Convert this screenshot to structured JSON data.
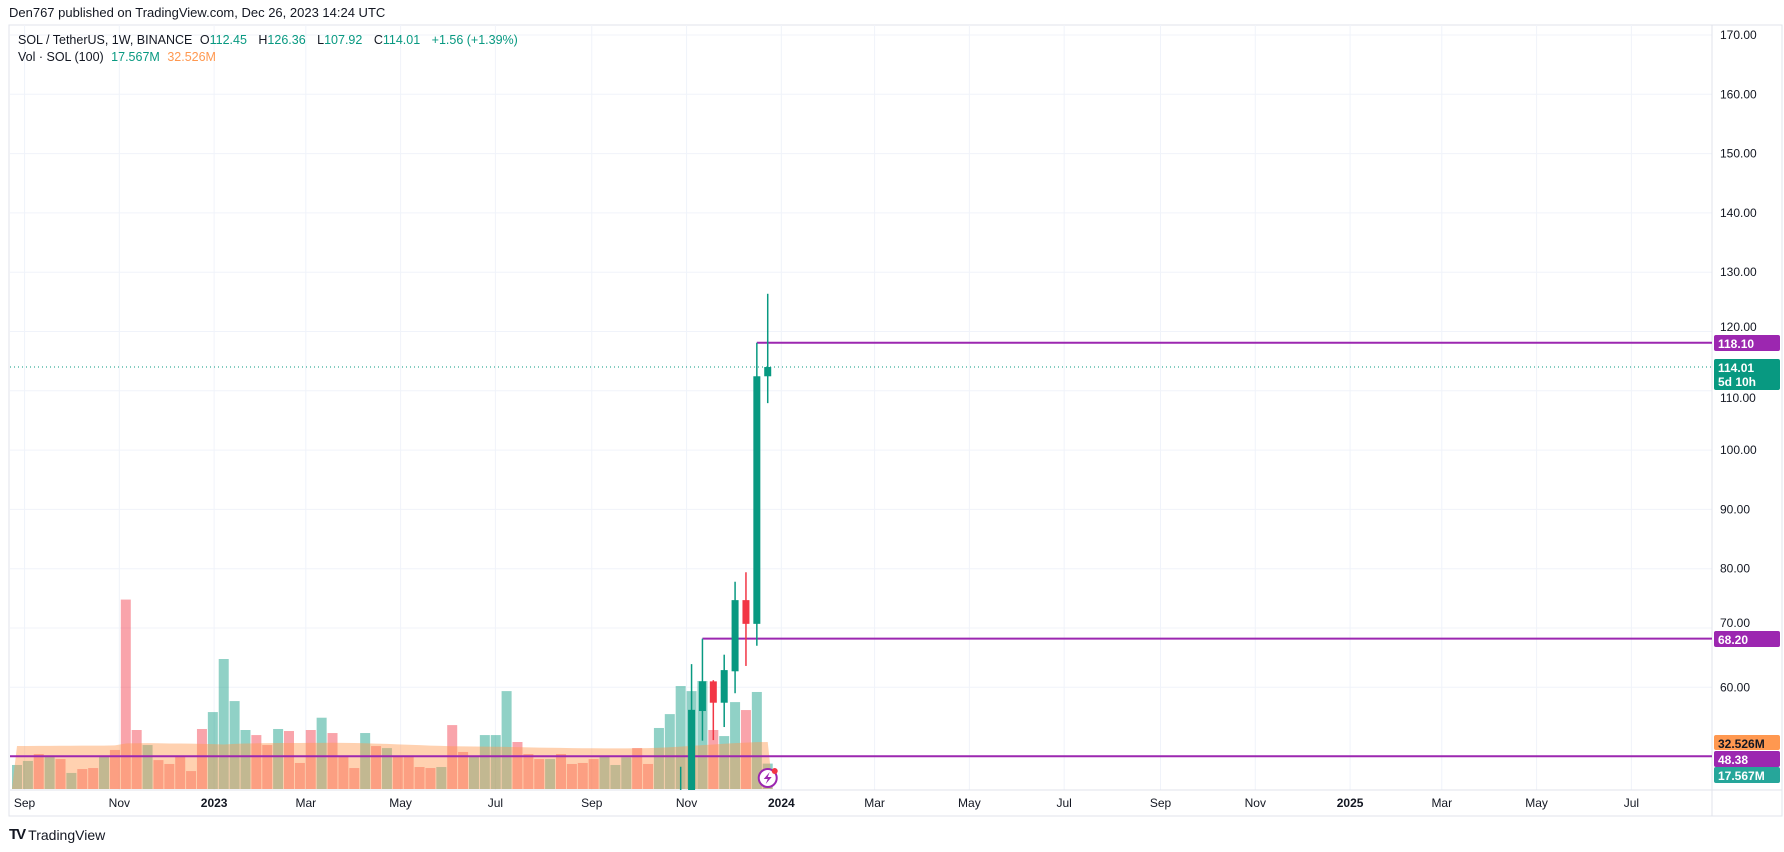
{
  "header": {
    "published": "Den767 published on TradingView.com, Dec 26, 2023 14:24 UTC"
  },
  "legend": {
    "symbol": "SOL / TetherUS, 1W, BINANCE",
    "o_label": "O",
    "o": "112.45",
    "h_label": "H",
    "h": "126.36",
    "l_label": "L",
    "l": "107.92",
    "c_label": "C",
    "c": "114.01",
    "change": "+1.56 (+1.39%)",
    "vol_label": "Vol · SOL (100)",
    "vol": "17.567M",
    "vol_ma": "32.526M"
  },
  "footer": {
    "logo_text": "TradingView"
  },
  "colors": {
    "up": "#089981",
    "down": "#f23645",
    "level": "#9c27b0",
    "vol_ma": "#ff9850",
    "grid": "#f0f3fa"
  },
  "chart_data": {
    "type": "candlestick",
    "interval": "1W",
    "week_start": "2022-08-22",
    "ylim": [
      42.7,
      171
    ],
    "y_ticks": [
      170,
      160,
      150,
      140,
      130,
      120,
      110,
      100,
      90,
      80,
      70,
      60
    ],
    "y_tick_labels": [
      "170.00",
      "160.00",
      "150.00",
      "140.00",
      "130.00",
      "120.00",
      "110.00",
      "100.00",
      "90.00",
      "80.00",
      "70.00",
      "60.00"
    ],
    "x_ticks": [
      {
        "date": "2022-09-01",
        "label": "Sep"
      },
      {
        "date": "2022-11-01",
        "label": "Nov"
      },
      {
        "date": "2023-01-01",
        "label": "2023",
        "bold": true
      },
      {
        "date": "2023-03-01",
        "label": "Mar"
      },
      {
        "date": "2023-05-01",
        "label": "May"
      },
      {
        "date": "2023-07-01",
        "label": "Jul"
      },
      {
        "date": "2023-09-01",
        "label": "Sep"
      },
      {
        "date": "2023-11-01",
        "label": "Nov"
      },
      {
        "date": "2024-01-01",
        "label": "2024",
        "bold": true
      },
      {
        "date": "2024-03-01",
        "label": "Mar"
      },
      {
        "date": "2024-05-01",
        "label": "May"
      },
      {
        "date": "2024-07-01",
        "label": "Jul"
      },
      {
        "date": "2024-09-01",
        "label": "Sep"
      },
      {
        "date": "2024-11-01",
        "label": "Nov"
      },
      {
        "date": "2025-01-01",
        "label": "2025",
        "bold": true
      },
      {
        "date": "2025-03-01",
        "label": "Mar"
      },
      {
        "date": "2025-05-01",
        "label": "May"
      },
      {
        "date": "2025-07-01",
        "label": "Jul"
      }
    ],
    "candles": [
      {
        "week": 61,
        "o": null,
        "h": 46.6,
        "l": null,
        "c": null,
        "dir": "up"
      },
      {
        "week": 62,
        "o": 39.0,
        "h": 63.9,
        "l": null,
        "c": 56.2,
        "dir": "up"
      },
      {
        "week": 63,
        "o": 56.0,
        "h": 68.2,
        "l": 51.0,
        "c": 61.0,
        "dir": "up"
      },
      {
        "week": 64,
        "o": 61.0,
        "h": 61.2,
        "l": 51.1,
        "c": 57.4,
        "dir": "down"
      },
      {
        "week": 65,
        "o": 57.4,
        "h": 65.5,
        "l": 53.3,
        "c": 62.9,
        "dir": "up"
      },
      {
        "week": 66,
        "o": 62.7,
        "h": 77.8,
        "l": 59.0,
        "c": 74.7,
        "dir": "up"
      },
      {
        "week": 67,
        "o": 74.7,
        "h": 79.4,
        "l": 63.6,
        "c": 70.7,
        "dir": "down"
      },
      {
        "week": 68,
        "o": 70.7,
        "h": 118.1,
        "l": 67.0,
        "c": 112.45,
        "dir": "up"
      },
      {
        "week": 69,
        "o": 112.45,
        "h": 126.36,
        "l": 107.92,
        "c": 114.01,
        "dir": "up"
      }
    ],
    "volume_unit": "M",
    "volume": [
      16.6,
      19.4,
      24.2,
      22.4,
      20.7,
      11.1,
      13.8,
      14.5,
      22.8,
      27,
      131,
      40.8,
      30.4,
      20,
      17.3,
      22.8,
      12.4,
      41.5,
      53.2,
      89.9,
      60.8,
      40.8,
      37.3,
      30.4,
      41.5,
      40.1,
      18,
      40.8,
      49.3,
      38.7,
      22.4,
      14.5,
      38.7,
      29.7,
      28.3,
      23,
      23,
      15.2,
      14.5,
      15.2,
      44.2,
      25.6,
      23,
      37.3,
      37.3,
      67.7,
      32.5,
      24.2,
      20.7,
      20.7,
      24.2,
      17.3,
      18,
      20.7,
      22.8,
      16.6,
      21.9,
      28.3,
      17.3,
      42.2,
      51.8,
      71.2,
      67.7,
      74.7,
      40.8,
      36.6,
      60.1,
      54.6,
      67.1,
      17.567
    ],
    "volume_dir": [
      "u",
      "u",
      "d",
      "u",
      "d",
      "u",
      "d",
      "d",
      "u",
      "d",
      "d",
      "d",
      "u",
      "d",
      "d",
      "d",
      "d",
      "d",
      "u",
      "u",
      "u",
      "u",
      "d",
      "d",
      "u",
      "d",
      "d",
      "d",
      "u",
      "d",
      "d",
      "d",
      "u",
      "d",
      "u",
      "d",
      "d",
      "d",
      "d",
      "u",
      "d",
      "d",
      "u",
      "u",
      "u",
      "u",
      "d",
      "d",
      "d",
      "u",
      "d",
      "d",
      "d",
      "d",
      "u",
      "u",
      "u",
      "d",
      "d",
      "u",
      "u",
      "u",
      "u",
      "u",
      "d",
      "u",
      "u",
      "d",
      "u",
      "u"
    ],
    "volume_ma": [
      29.7,
      29.7,
      29.8,
      29.8,
      29.9,
      29.9,
      30,
      30,
      30,
      30.2,
      31.5,
      31.6,
      31.7,
      31.6,
      31.5,
      31.5,
      31.4,
      31.2,
      31,
      30.8,
      31.2,
      31.5,
      31.6,
      31.7,
      31.8,
      31.8,
      31.8,
      31.9,
      31.9,
      32,
      31.9,
      31.8,
      31.6,
      31.4,
      31.2,
      30.9,
      30.6,
      30.3,
      30,
      29.8,
      29.6,
      29.5,
      29.4,
      29.3,
      29.2,
      29.1,
      29,
      28.8,
      28.6,
      28.5,
      28.4,
      28.3,
      28.2,
      28.2,
      28.1,
      28.1,
      28.1,
      28.2,
      28.3,
      28.5,
      28.9,
      29.3,
      29.8,
      30.3,
      30.8,
      31.3,
      31.7,
      32.1,
      32.4,
      32.526
    ],
    "levels": [
      {
        "price": 118.1,
        "label": "118.10",
        "from_week": 68
      },
      {
        "price": 68.2,
        "label": "68.20",
        "from_week": 63
      },
      {
        "price": 48.38,
        "label": "48.38",
        "from_week": 0
      }
    ],
    "last_price": {
      "price": 114.01,
      "label": "114.01",
      "countdown": "5d 10h"
    },
    "axis_badges": {
      "vol_ma": "32.526M",
      "vol": "17.567M"
    }
  }
}
